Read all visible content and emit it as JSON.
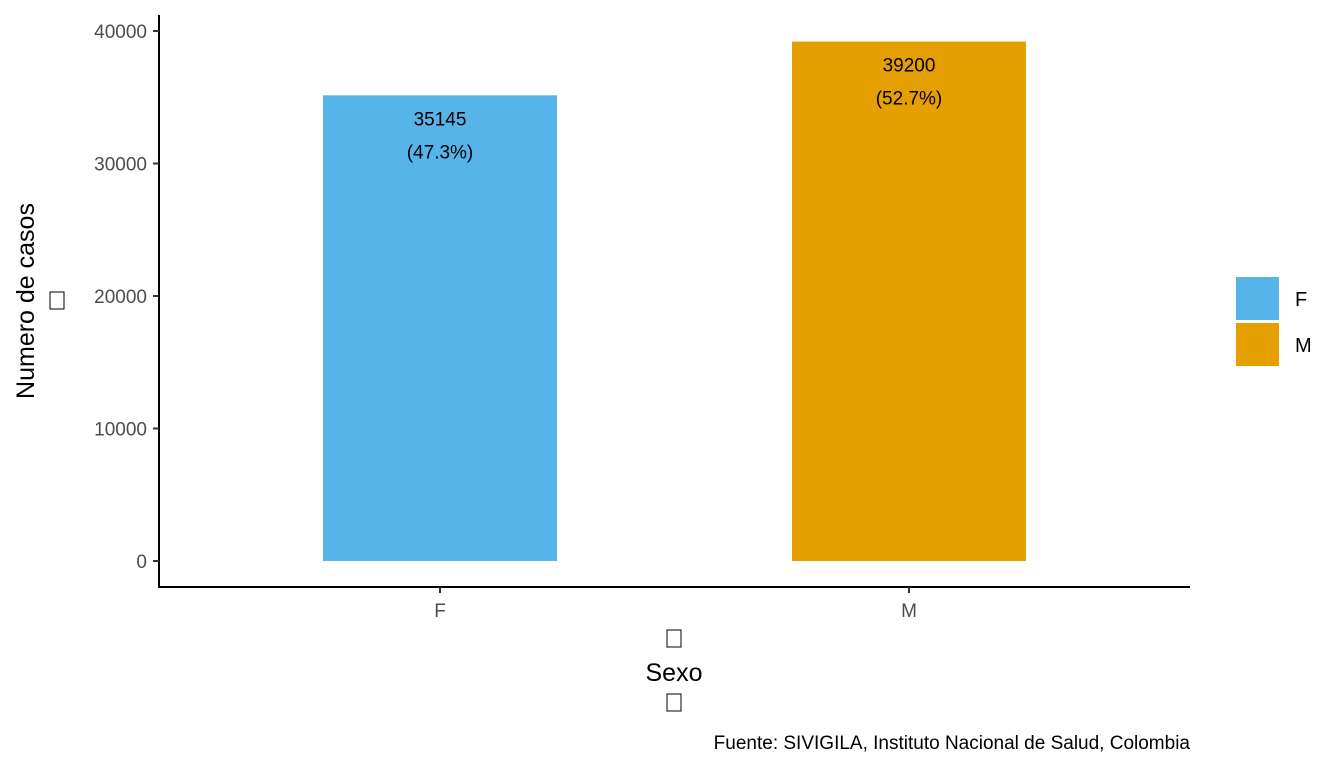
{
  "chart_data": {
    "type": "bar",
    "categories": [
      "F",
      "M"
    ],
    "values": [
      35145,
      39200
    ],
    "value_labels": [
      "35145",
      "39200"
    ],
    "percent_labels": [
      "(47.3%)",
      "(52.7%)"
    ],
    "colors": [
      "#56B4E9",
      "#E69F00"
    ],
    "ylim": [
      0,
      40000
    ],
    "yticks": [
      0,
      10000,
      20000,
      30000,
      40000
    ],
    "ytick_labels": [
      "0",
      "10000",
      "20000",
      "30000",
      "40000"
    ],
    "xlabel": "Sexo",
    "ylabel": "Numero de casos",
    "legend": {
      "position": "right",
      "entries": [
        {
          "label": "F",
          "color": "#56B4E9"
        },
        {
          "label": "M",
          "color": "#E69F00"
        }
      ]
    },
    "grid": false
  },
  "caption": "Fuente: SIVIGILA, Instituto Nacional de Salud, Colombia"
}
